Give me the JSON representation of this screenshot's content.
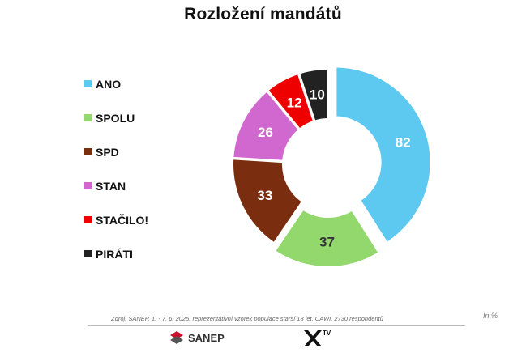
{
  "chart_data": {
    "type": "pie",
    "title": "Rozložení mandátů",
    "categories": [
      "ANO",
      "SPOLU",
      "SPD",
      "STAN",
      "STAČILO!",
      "PIRÁTI"
    ],
    "values": [
      82,
      37,
      33,
      26,
      12,
      10
    ],
    "colors": [
      "#5dc8f0",
      "#92d86c",
      "#7b2e0f",
      "#d068cf",
      "#ee0000",
      "#222222"
    ],
    "label_colors": [
      "#ffffff",
      "#333333",
      "#ffffff",
      "#ffffff",
      "#ffffff",
      "#ffffff"
    ],
    "donut": true,
    "exploded": [
      "ANO",
      "SPOLU"
    ],
    "legend_position": "left"
  },
  "footer": {
    "source": "Zdroj: SANEP, 1. - 7. 6. 2025, reprezentativní vzorek populace starší 18 let, CAWI, 2730 respondentů",
    "unit": "In %",
    "logo_left_text": "SANEP",
    "logo_right_text": "TV"
  }
}
